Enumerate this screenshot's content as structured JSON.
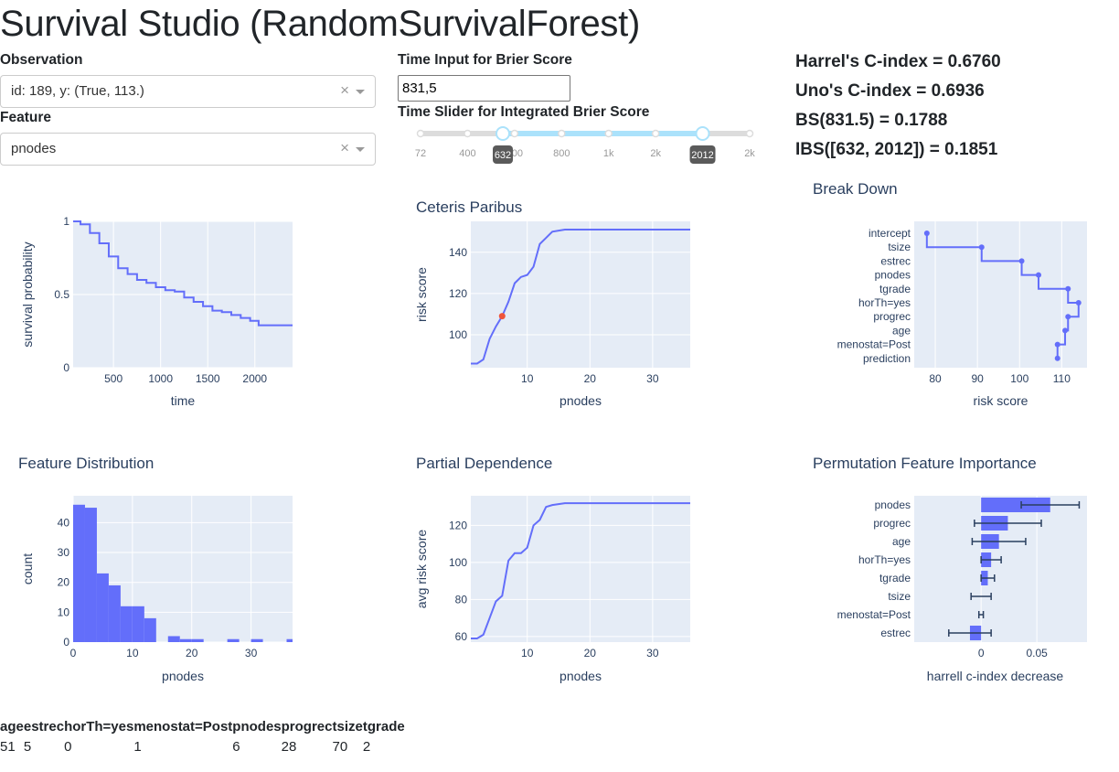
{
  "title": "Survival Studio (RandomSurvivalForest)",
  "observation": {
    "label": "Observation",
    "value": "id: 189, y: (True, 113.)"
  },
  "feature": {
    "label": "Feature",
    "value": "pnodes"
  },
  "brier_input": {
    "label": "Time Input for Brier Score",
    "value": "831,5"
  },
  "slider": {
    "label": "Time Slider for Integrated Brier Score",
    "marks": [
      "72",
      "400",
      "600",
      "800",
      "1k",
      "2k",
      "2k",
      "2k"
    ],
    "range": [
      632,
      2012
    ],
    "handle_labels": [
      "632",
      "2012"
    ],
    "handle_fracs": [
      0.25,
      0.857
    ]
  },
  "metrics": [
    "Harrel's C-index = 0.6760",
    "Uno's C-index = 0.6936",
    "BS(831.5) = 0.1788",
    "IBS([632, 2012]) = 0.1851"
  ],
  "colors": {
    "series": "#636efa",
    "highlight": "#ef553b",
    "plot_bg": "#e5ecf6"
  },
  "plots": {
    "survival": {
      "title": "",
      "xlabel": "time",
      "ylabel": "survival probability"
    },
    "ceteris": {
      "title": "Ceteris Paribus",
      "xlabel": "pnodes",
      "ylabel": "risk score"
    },
    "breakdown": {
      "title": "Break Down",
      "xlabel": "risk score"
    },
    "featdist": {
      "title": "Feature Distribution",
      "xlabel": "pnodes",
      "ylabel": "count"
    },
    "pdp": {
      "title": "Partial Dependence",
      "xlabel": "pnodes",
      "ylabel": "avg risk score"
    },
    "pfi": {
      "title": "Permutation Feature Importance",
      "xlabel": "harrell c-index decrease"
    }
  },
  "chart_data": [
    {
      "type": "line",
      "xlabel": "time",
      "ylabel": "survival probability",
      "xlim": [
        72,
        2400
      ],
      "ylim": [
        0,
        1
      ],
      "xticks": [
        500,
        1000,
        1500,
        2000
      ],
      "xtick_labels": [
        "500",
        "1000",
        "1500",
        "2000"
      ],
      "yticks": [
        0,
        0.5,
        1
      ],
      "ytick_labels": [
        "0",
        "0.5",
        "1"
      ],
      "x": [
        72,
        150,
        250,
        350,
        450,
        550,
        650,
        750,
        850,
        950,
        1050,
        1150,
        1250,
        1350,
        1450,
        1550,
        1650,
        1750,
        1850,
        1950,
        2040,
        2100,
        2200,
        2300,
        2400
      ],
      "y": [
        1.0,
        0.98,
        0.92,
        0.85,
        0.76,
        0.68,
        0.64,
        0.6,
        0.58,
        0.55,
        0.53,
        0.52,
        0.48,
        0.45,
        0.42,
        0.39,
        0.38,
        0.36,
        0.34,
        0.32,
        0.29,
        0.29,
        0.29,
        0.29,
        0.29
      ],
      "step": true
    },
    {
      "type": "line",
      "xlabel": "pnodes",
      "ylabel": "risk score",
      "xlim": [
        1,
        36
      ],
      "ylim": [
        84,
        155
      ],
      "xticks": [
        10,
        20,
        30
      ],
      "xtick_labels": [
        "10",
        "20",
        "30"
      ],
      "yticks": [
        100,
        120,
        140
      ],
      "ytick_labels": [
        "100",
        "120",
        "140"
      ],
      "x": [
        1,
        2,
        3,
        4,
        5,
        6,
        7,
        8,
        9,
        10,
        11,
        12,
        13,
        14,
        16,
        20,
        36
      ],
      "y": [
        86,
        86,
        88,
        98,
        104,
        109,
        116,
        125,
        128,
        129,
        133,
        144,
        147,
        150,
        151,
        151,
        151
      ],
      "highlight": {
        "x": 6,
        "y": 109
      }
    },
    {
      "type": "waterfall",
      "xlabel": "risk score",
      "xlim": [
        75,
        116
      ],
      "xticks": [
        80,
        90,
        100,
        110
      ],
      "xtick_labels": [
        "80",
        "90",
        "100",
        "110"
      ],
      "labels": [
        "intercept",
        "tsize",
        "estrec",
        "pnodes",
        "tgrade",
        "horTh=yes",
        "progrec",
        "age",
        "menostat=Post",
        "prediction"
      ],
      "values": [
        78,
        91,
        100.5,
        104.5,
        111.5,
        114,
        111.5,
        110.8,
        109,
        109
      ]
    },
    {
      "type": "bar",
      "xlabel": "pnodes",
      "ylabel": "count",
      "xlim": [
        0,
        37
      ],
      "ylim": [
        0,
        49
      ],
      "xticks": [
        0,
        10,
        20,
        30
      ],
      "xtick_labels": [
        "0",
        "10",
        "20",
        "30"
      ],
      "yticks": [
        0,
        10,
        20,
        30,
        40
      ],
      "ytick_labels": [
        "0",
        "10",
        "20",
        "30",
        "40"
      ],
      "bin_edges": [
        0,
        2,
        4,
        6,
        8,
        10,
        12,
        14,
        16,
        18,
        20,
        22,
        24,
        26,
        28,
        30,
        32,
        34,
        36,
        37
      ],
      "values": [
        46,
        45,
        23,
        19,
        12,
        12,
        8,
        0,
        2,
        1,
        1,
        0,
        0,
        1,
        0,
        1,
        0,
        0,
        1
      ]
    },
    {
      "type": "line",
      "xlabel": "pnodes",
      "ylabel": "avg risk score",
      "xlim": [
        1,
        36
      ],
      "ylim": [
        57,
        136
      ],
      "xticks": [
        10,
        20,
        30
      ],
      "xtick_labels": [
        "10",
        "20",
        "30"
      ],
      "yticks": [
        60,
        80,
        100,
        120
      ],
      "ytick_labels": [
        "60",
        "80",
        "100",
        "120"
      ],
      "x": [
        1,
        2,
        3,
        4,
        5,
        6,
        7,
        8,
        9,
        10,
        11,
        12,
        13,
        14,
        16,
        20,
        36
      ],
      "y": [
        59,
        59,
        61,
        70,
        79,
        82,
        101,
        105,
        105,
        108,
        120,
        123,
        130,
        131,
        132,
        132,
        132
      ]
    },
    {
      "type": "bar",
      "orientation": "h",
      "xlabel": "harrell c-index decrease",
      "xlim": [
        -0.06,
        0.095
      ],
      "xticks": [
        0,
        0.05
      ],
      "xtick_labels": [
        "0",
        "0.05"
      ],
      "labels": [
        "pnodes",
        "progrec",
        "age",
        "horTh=yes",
        "tgrade",
        "tsize",
        "menostat=Post",
        "estrec"
      ],
      "values": [
        0.062,
        0.024,
        0.016,
        0.009,
        0.006,
        0.0,
        0.0,
        -0.01
      ],
      "errors": [
        0.026,
        0.03,
        0.024,
        0.009,
        0.006,
        0.009,
        0.002,
        0.019
      ]
    }
  ],
  "table": {
    "headers": [
      "age",
      "estrec",
      "horTh=yes",
      "menostat=Post",
      "pnodes",
      "progrec",
      "tsize",
      "tgrade"
    ],
    "rows": [
      [
        "51",
        "5",
        "0",
        "1",
        "6",
        "28",
        "70",
        "2"
      ]
    ]
  }
}
